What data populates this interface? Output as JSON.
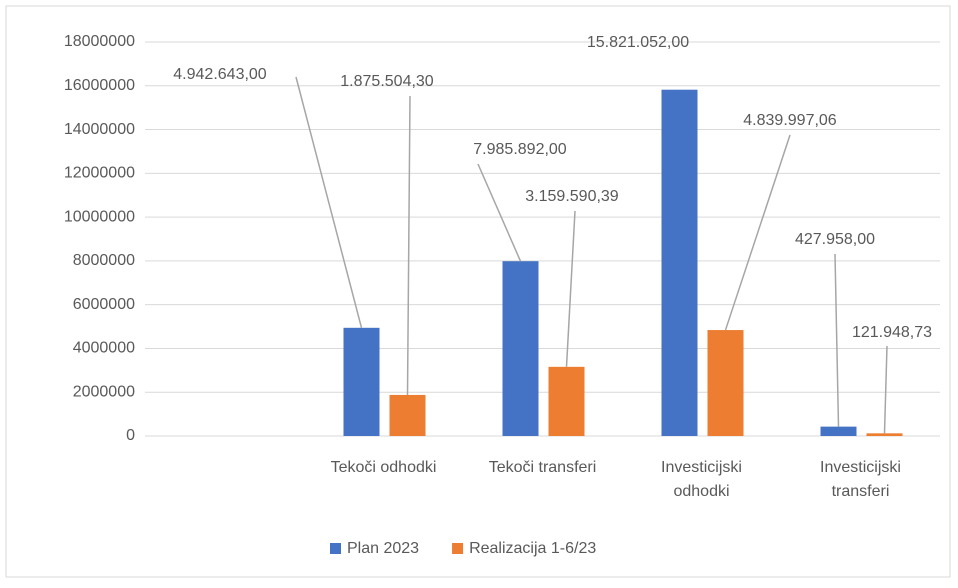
{
  "chart_data": {
    "type": "bar",
    "categories": [
      null,
      "Tekoči odhodki",
      "Tekoči transferi",
      "Investicijski odhodki",
      "Investicijski transferi"
    ],
    "series": [
      {
        "name": "Plan 2023",
        "color": "#4472c4",
        "values": [
          null,
          4942643,
          7985892,
          15821052,
          427958
        ],
        "value_labels": [
          null,
          "4.942.643,00",
          "7.985.892,00",
          "15.821.052,00",
          "427.958,00"
        ]
      },
      {
        "name": "Realizacija 1-6/23",
        "color": "#ed7d31",
        "values": [
          null,
          1875504.3,
          3159590.39,
          4839997.06,
          121948.73
        ],
        "value_labels": [
          null,
          "1.875.504,30",
          "3.159.590,39",
          "4.839.997,06",
          "121.948,73"
        ]
      }
    ],
    "ylim": [
      0,
      18000000
    ],
    "yticks": [
      0,
      2000000,
      4000000,
      6000000,
      8000000,
      10000000,
      12000000,
      14000000,
      16000000,
      18000000
    ],
    "grid": true,
    "legend": "bottom"
  }
}
